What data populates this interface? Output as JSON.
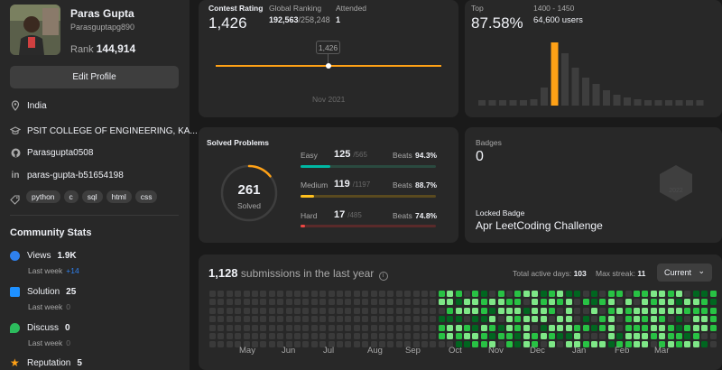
{
  "profile": {
    "name": "Paras Gupta",
    "handle": "Parasguptapg890",
    "rank_label": "Rank",
    "rank_value": "144,914",
    "edit_label": "Edit Profile",
    "location": "India",
    "school": "PSIT COLLEGE OF ENGINEERING, KA...",
    "github": "Parasgupta0508",
    "linkedin": "paras-gupta-b51654198",
    "skills": [
      "python",
      "c",
      "sql",
      "html",
      "css"
    ]
  },
  "community": {
    "title": "Community Stats",
    "stats": [
      {
        "label": "Views",
        "value": "1.9K",
        "sub": "Last week",
        "delta": "+14",
        "icon": "eye-icon",
        "color": "#2f80ed"
      },
      {
        "label": "Solution",
        "value": "25",
        "sub": "Last week",
        "delta": "0",
        "icon": "solution-icon",
        "color": "#1e90ff"
      },
      {
        "label": "Discuss",
        "value": "0",
        "sub": "Last week",
        "delta": "0",
        "icon": "discuss-icon",
        "color": "#2cbb5d"
      },
      {
        "label": "Reputation",
        "value": "5",
        "icon": "star-icon",
        "color": "#ffa116"
      }
    ]
  },
  "contest": {
    "rating_label": "Contest Rating",
    "rating_value": "1,426",
    "global_label": "Global Ranking",
    "global_value": "192,563",
    "global_total": "/258,248",
    "attended_label": "Attended",
    "attended_value": "1",
    "tooltip_value": "1,426",
    "date_label": "Nov 2021"
  },
  "top": {
    "label": "Top",
    "value": "87.58%",
    "range": "1400 - 1450",
    "users": "64,600 users"
  },
  "solved": {
    "title": "Solved Problems",
    "total": "261",
    "total_label": "Solved",
    "difficulties": [
      {
        "name": "Easy",
        "solved": "125",
        "total": "/565",
        "beats_label": "Beats",
        "beats": "94.3%",
        "fill": 0.221,
        "color": "#00b8a3",
        "track": "#2a4a3f"
      },
      {
        "name": "Medium",
        "solved": "119",
        "total": "/1197",
        "beats_label": "Beats",
        "beats": "88.7%",
        "fill": 0.099,
        "color": "#ffc01e",
        "track": "#5a4a1f"
      },
      {
        "name": "Hard",
        "solved": "17",
        "total": "/485",
        "beats_label": "Beats",
        "beats": "74.8%",
        "fill": 0.035,
        "color": "#ef4743",
        "track": "#5a2a2a"
      }
    ]
  },
  "badges": {
    "label": "Badges",
    "count": "0",
    "locked_label": "Locked Badge",
    "locked_name": "Apr LeetCoding Challenge",
    "badge_year": "2022"
  },
  "submissions": {
    "count": "1,128",
    "label": "submissions in the last year",
    "active_label": "Total active days:",
    "active_value": "103",
    "streak_label": "Max streak:",
    "streak_value": "11",
    "selector": "Current",
    "months": [
      "May",
      "Jun",
      "Jul",
      "Aug",
      "Sep",
      "Oct",
      "Nov",
      "Dec",
      "Jan",
      "Feb",
      "Mar"
    ]
  },
  "colors": {
    "accent": "#ffa116",
    "card": "#282828",
    "bg": "#1a1a1a",
    "heat_empty": "#3a3a3a",
    "heat_low": "#016620",
    "heat_mid": "#28c244",
    "heat_high": "#7ee787"
  }
}
